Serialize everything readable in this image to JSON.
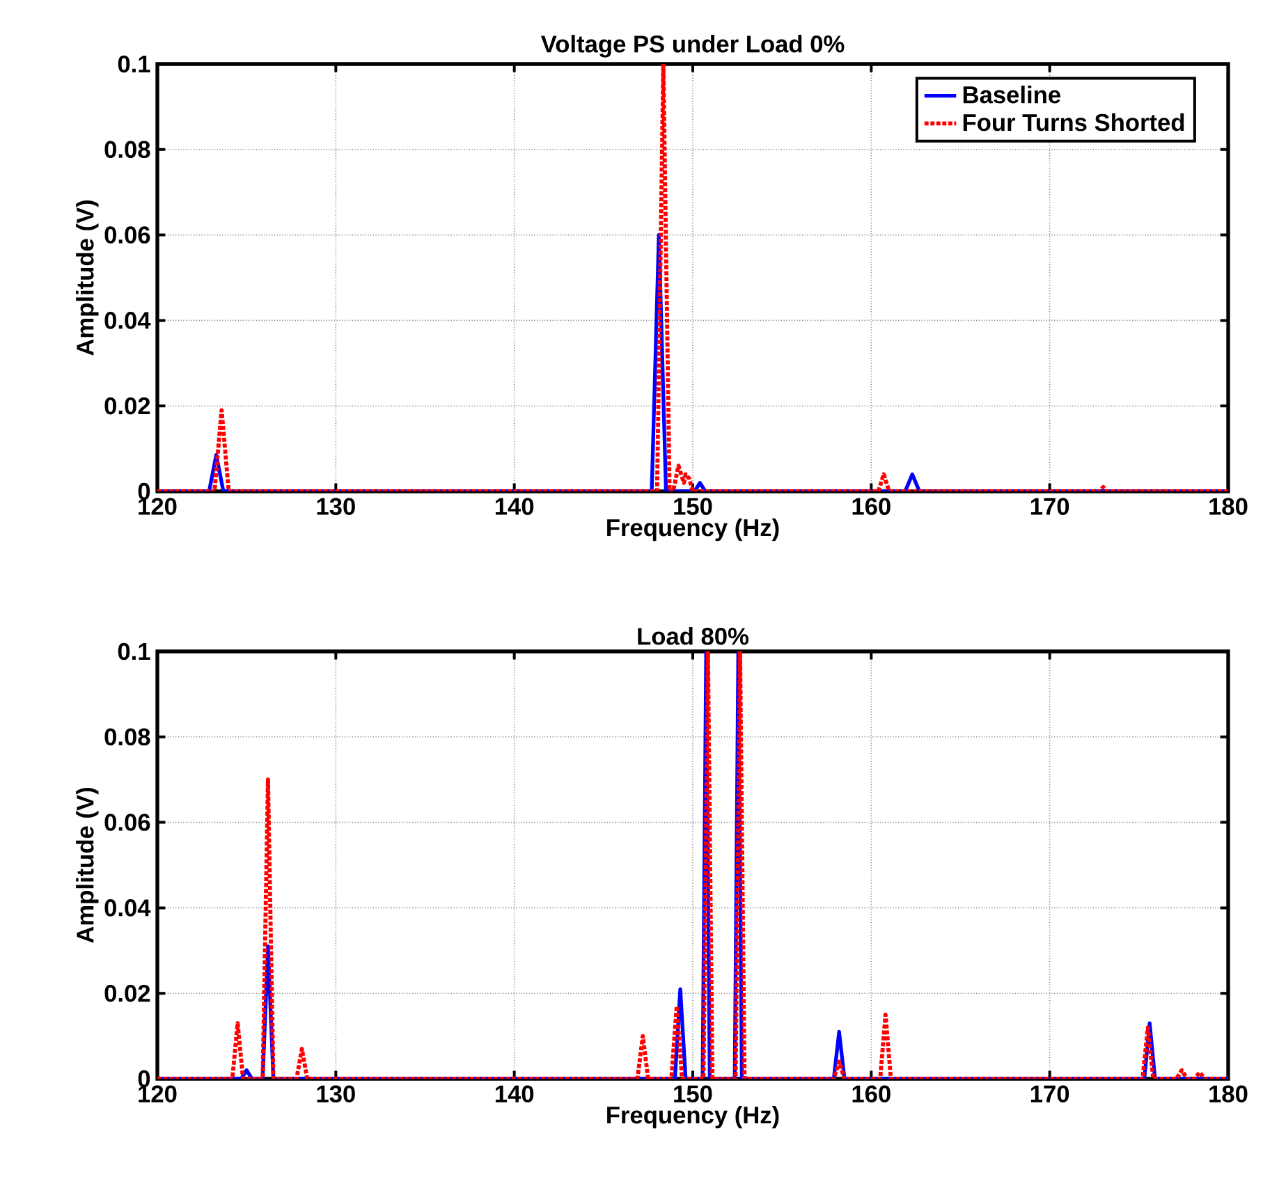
{
  "chart_data": [
    {
      "type": "line",
      "title": "Voltage PS under Load 0%",
      "xlabel": "Frequency (Hz)",
      "ylabel": "Amplitude (V)",
      "xlim": [
        120,
        180
      ],
      "ylim": [
        0,
        0.1
      ],
      "xticks": [
        120,
        130,
        140,
        150,
        160,
        170,
        180
      ],
      "yticks": [
        0,
        0.02,
        0.04,
        0.06,
        0.08,
        0.1
      ],
      "grid": true,
      "legend": "top right",
      "series": [
        {
          "name": "Baseline",
          "color": "#0000ff",
          "line_style": "solid",
          "x": [
            120,
            122.9,
            123.3,
            123.7,
            147.7,
            148.1,
            148.5,
            150.1,
            150.4,
            150.7,
            161.9,
            162.3,
            162.7,
            180
          ],
          "values": [
            0,
            0,
            0.0085,
            0,
            0,
            0.06,
            0,
            0,
            0.002,
            0,
            0,
            0.004,
            0,
            0
          ]
        },
        {
          "name": "Four Turns Shorted",
          "color": "#ff0000",
          "line_style": "dotted",
          "x": [
            120,
            123.2,
            123.6,
            124.0,
            148.0,
            148.35,
            148.7,
            148.9,
            149.2,
            149.5,
            149.6,
            149.8,
            150.0,
            160.4,
            160.7,
            161.0,
            172.8,
            173.0,
            173.2,
            180
          ],
          "values": [
            0,
            0,
            0.019,
            0,
            0,
            0.1,
            0,
            0,
            0.006,
            0.002,
            0.004,
            0.003,
            0,
            0,
            0.004,
            0,
            0,
            0.001,
            0,
            0
          ]
        }
      ]
    },
    {
      "type": "line",
      "title": "Load 80%",
      "xlabel": "Frequency (Hz)",
      "ylabel": "Amplitude (V)",
      "xlim": [
        120,
        180
      ],
      "ylim": [
        0,
        0.1
      ],
      "xticks": [
        120,
        130,
        140,
        150,
        160,
        170,
        180
      ],
      "yticks": [
        0,
        0.02,
        0.04,
        0.06,
        0.08,
        0.1
      ],
      "grid": true,
      "series": [
        {
          "color": "#0000ff",
          "line_style": "solid",
          "x": [
            120,
            124.7,
            125.0,
            125.3,
            125.9,
            126.2,
            126.5,
            149.0,
            149.3,
            149.6,
            150.55,
            150.75,
            150.95,
            152.35,
            152.55,
            152.75,
            157.9,
            158.2,
            158.5,
            175.3,
            175.6,
            175.9,
            180
          ],
          "values": [
            0,
            0,
            0.002,
            0,
            0,
            0.031,
            0,
            0,
            0.021,
            0,
            0,
            0.1,
            0,
            0,
            0.1,
            0,
            0,
            0.011,
            0,
            0,
            0.013,
            0,
            0
          ]
        },
        {
          "color": "#ff0000",
          "line_style": "dotted",
          "x": [
            120,
            124.2,
            124.5,
            124.8,
            125.9,
            126.2,
            126.5,
            127.8,
            128.1,
            128.4,
            146.9,
            147.2,
            147.5,
            148.8,
            149.1,
            149.4,
            150.6,
            150.85,
            151.1,
            152.4,
            152.65,
            152.9,
            157.9,
            158.2,
            158.5,
            160.5,
            160.8,
            161.1,
            175.2,
            175.5,
            175.8,
            177.1,
            177.4,
            177.7,
            178.1,
            178.4,
            178.7,
            180
          ],
          "values": [
            0,
            0,
            0.013,
            0,
            0,
            0.07,
            0,
            0,
            0.007,
            0,
            0,
            0.01,
            0,
            0,
            0.017,
            0,
            0,
            0.1,
            0,
            0,
            0.1,
            0,
            0,
            0.004,
            0,
            0,
            0.015,
            0,
            0,
            0.012,
            0,
            0,
            0.002,
            0,
            0,
            0.0015,
            0,
            0
          ]
        }
      ]
    }
  ]
}
